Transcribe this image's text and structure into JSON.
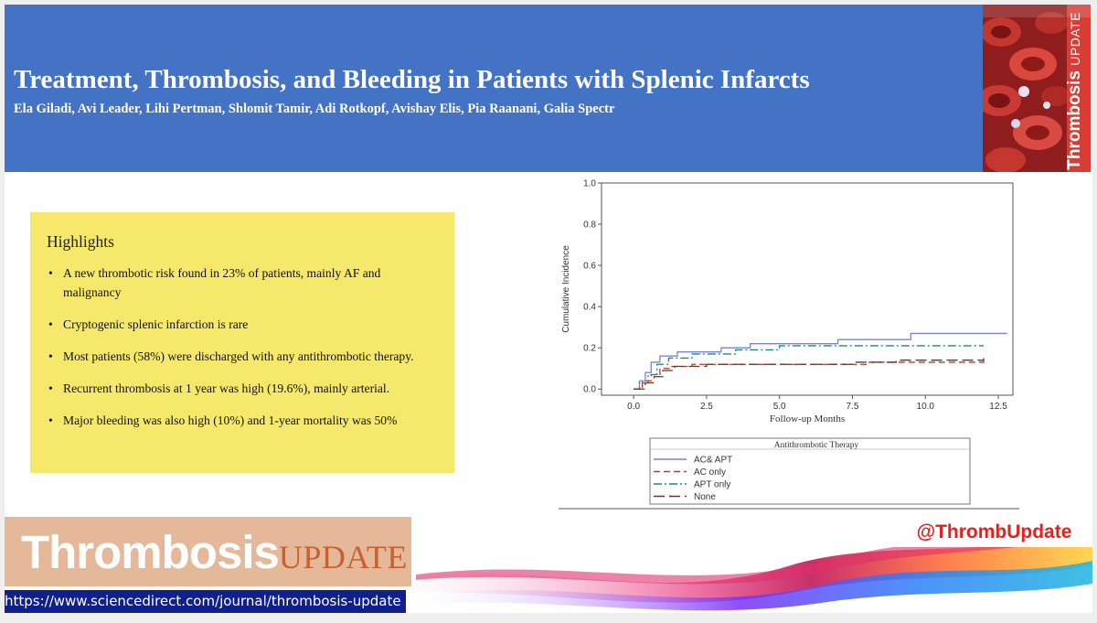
{
  "header": {
    "title": "Treatment, Thrombosis, and Bleeding in Patients with Splenic Infarcts",
    "authors": "Ela Giladi, Avi Leader, Lihi Pertman, Shlomit Tamir, Adi Rotkopf, Avishay Elis, Pia Raanani, Galia Spectr"
  },
  "cover": {
    "word1": "Thrombosis",
    "word2": "UPDATE"
  },
  "highlights": {
    "title": "Highlights",
    "items": [
      "A new thrombotic risk found in 23% of patients, mainly AF and malignancy",
      "Cryptogenic splenic infarction is rare",
      "Most patients (58%) were discharged with any antithrombotic therapy.",
      "Recurrent thrombosis at 1 year was high (19.6%), mainly arterial.",
      "Major bleeding was also high (10%) and 1-year mortality was 50%"
    ]
  },
  "chart_data": {
    "type": "line",
    "xlabel": "Follow-up Months",
    "ylabel": "Cumulative Incidence",
    "xlim": [
      -1.1,
      13
    ],
    "ylim": [
      -0.03,
      1.0
    ],
    "x_ticks": [
      0.0,
      2.5,
      5.0,
      7.5,
      10.0,
      12.5
    ],
    "x_tick_labels": [
      "0.0",
      "2.5",
      "5.0",
      "7.5",
      "10.0",
      "12.5"
    ],
    "y_ticks": [
      0.0,
      0.2,
      0.4,
      0.6,
      0.8,
      1.0
    ],
    "y_tick_labels": [
      "0.0",
      "0.2",
      "0.4",
      "0.6",
      "0.8",
      "1.0"
    ],
    "legend_title": "Antithrombotic Therapy",
    "legend_position": "bottom",
    "series": [
      {
        "name": "AC& APT",
        "color": "#7b83d6",
        "dash": "solid",
        "x": [
          0,
          0.2,
          0.4,
          0.6,
          0.9,
          1.5,
          3.0,
          4.0,
          7.0,
          9.5,
          12.8
        ],
        "y": [
          0,
          0.04,
          0.08,
          0.13,
          0.16,
          0.18,
          0.2,
          0.22,
          0.24,
          0.27,
          0.27
        ]
      },
      {
        "name": "AC only",
        "color": "#c0392b",
        "dash": "dashed",
        "x": [
          0,
          0.3,
          0.6,
          0.9,
          1.3,
          2.0,
          8.0,
          12.0,
          12.1
        ],
        "y": [
          0,
          0.04,
          0.07,
          0.1,
          0.11,
          0.12,
          0.13,
          0.14,
          0.14
        ]
      },
      {
        "name": "APT only",
        "color": "#1f8a70",
        "dash": "dashdot",
        "x": [
          0,
          0.2,
          0.5,
          0.8,
          1.2,
          2.0,
          3.5,
          5.0,
          12.0
        ],
        "y": [
          0,
          0.03,
          0.07,
          0.12,
          0.15,
          0.17,
          0.19,
          0.21,
          0.21
        ]
      },
      {
        "name": "None",
        "color": "#5a3c2e",
        "dash": "longdash",
        "x": [
          0,
          0.4,
          0.7,
          1.0,
          1.4,
          2.5,
          7.5,
          9.0,
          12.0
        ],
        "y": [
          0,
          0.03,
          0.06,
          0.09,
          0.11,
          0.12,
          0.13,
          0.14,
          0.15
        ]
      }
    ]
  },
  "footer": {
    "logo_word1": "Thrombosis",
    "logo_word2": "UPDATE",
    "handle": "@ThrombUpdate",
    "url": "https://www.sciencedirect.com/journal/thrombosis-update"
  }
}
